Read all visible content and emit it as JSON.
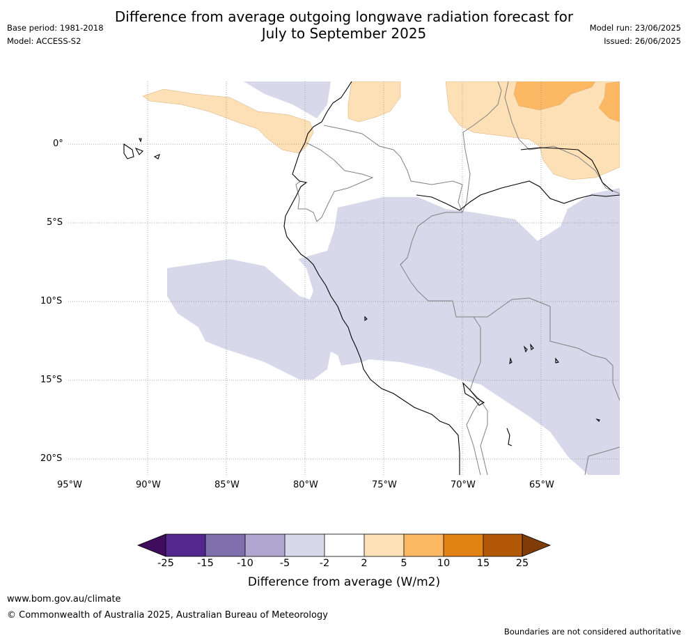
{
  "title_line1": "Difference from average outgoing longwave radiation forecast for",
  "title_line2": "July to September 2025",
  "base_period": "Base period: 1981-2018",
  "model": "Model: ACCESS-S2",
  "model_run": "Model run: 23/06/2025",
  "issued": "Issued: 26/06/2025",
  "lat_labels": [
    "0°",
    "5°S",
    "10°S",
    "15°S",
    "20°S"
  ],
  "lon_labels": [
    "95°W",
    "90°W",
    "85°W",
    "80°W",
    "75°W",
    "70°W",
    "65°W"
  ],
  "colorbar": {
    "ticks": [
      "-25",
      "-15",
      "-10",
      "-5",
      "-2",
      "2",
      "5",
      "10",
      "15",
      "25"
    ],
    "colors": [
      "#3f0d5c",
      "#54278f",
      "#7f6fad",
      "#aea6d0",
      "#d8d8ea",
      "#ffffff",
      "#fde0b6",
      "#fdb863",
      "#e08214",
      "#b35806",
      "#7f3b08"
    ],
    "label": "Difference from average (W/m2)"
  },
  "footer_url": "www.bom.gov.au/climate",
  "copyright": "© Commonwealth of Australia 2025, Australian Bureau of Meteorology",
  "disclaimer": "Boundaries are not considered authoritative"
}
